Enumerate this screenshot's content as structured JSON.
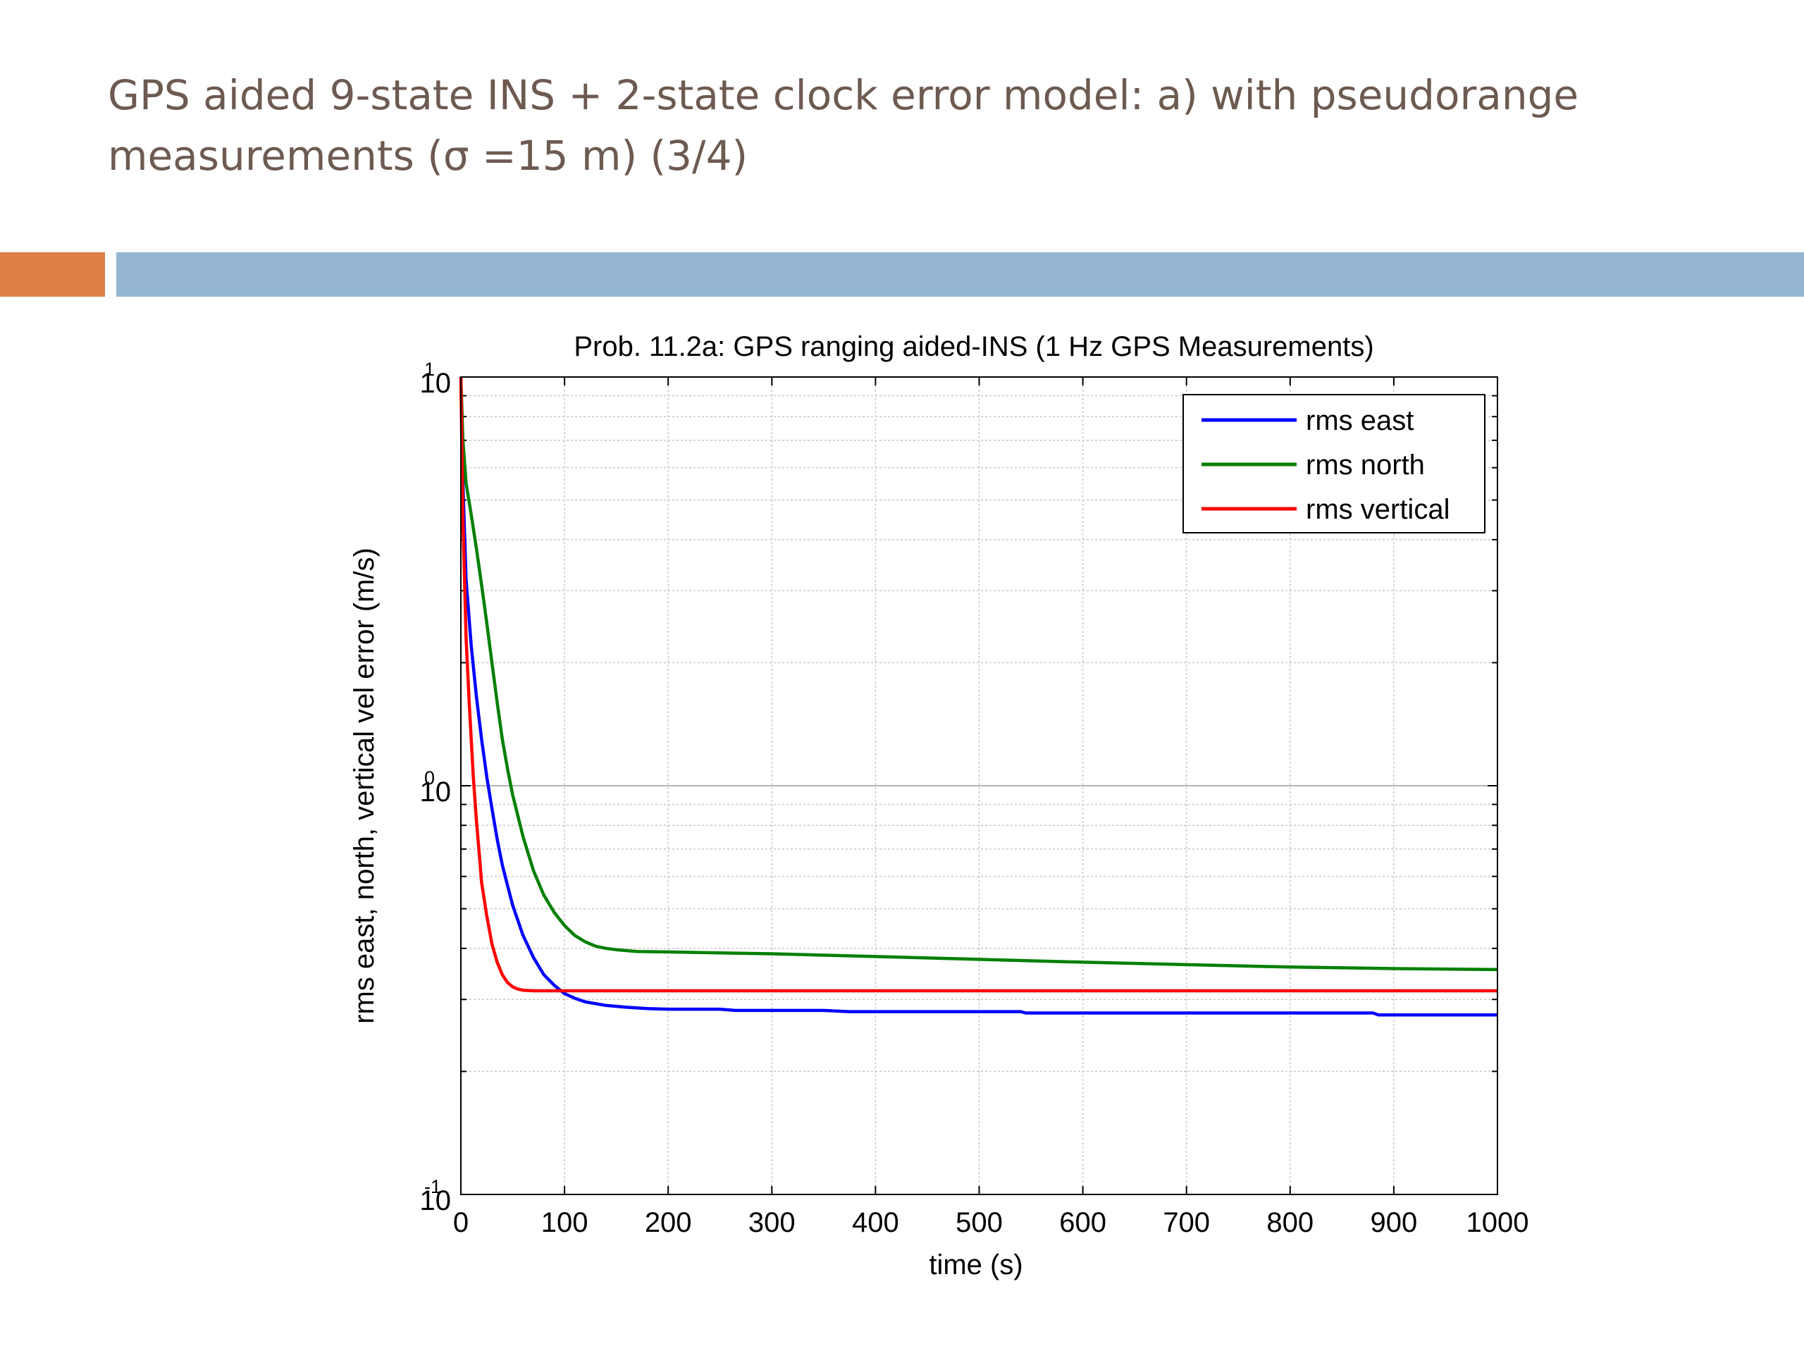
{
  "slide": {
    "title_line1": "GPS aided 9-state INS + 2-state clock error model: a) with pseudorange",
    "title_line2": "measurements (σ =15 m) (3/4)",
    "accent_colors": [
      "#dd8047",
      "#94b6d2"
    ]
  },
  "chart_data": {
    "type": "line",
    "title": "Prob. 11.2a: GPS ranging aided-INS (1 Hz GPS Measurements)",
    "xlabel": "time (s)",
    "ylabel": "rms east, north, vertical vel error (m/s)",
    "xlim": [
      0,
      1000
    ],
    "ylim": [
      0.1,
      10
    ],
    "yscale": "log",
    "xticks": [
      0,
      100,
      200,
      300,
      400,
      500,
      600,
      700,
      800,
      900,
      1000
    ],
    "xtick_labels": [
      "0",
      "100",
      "200",
      "300",
      "400",
      "500",
      "600",
      "700",
      "800",
      "900",
      "1000"
    ],
    "yticks": [
      0.1,
      1,
      10
    ],
    "ytick_labels": [
      {
        "base": "10",
        "exp": "-1"
      },
      {
        "base": "10",
        "exp": "0"
      },
      {
        "base": "10",
        "exp": "1"
      }
    ],
    "grid": true,
    "legend_position": "top-right",
    "series": [
      {
        "name": "rms east",
        "color": "#0000ff",
        "x": [
          0,
          2,
          5,
          10,
          15,
          20,
          25,
          30,
          35,
          40,
          45,
          50,
          60,
          70,
          80,
          90,
          100,
          110,
          120,
          140,
          160,
          180,
          200,
          250,
          265,
          300,
          350,
          375,
          400,
          450,
          500,
          540,
          545,
          600,
          700,
          800,
          880,
          885,
          1000
        ],
        "y": [
          10,
          5.5,
          3.2,
          2.2,
          1.65,
          1.3,
          1.05,
          0.88,
          0.74,
          0.64,
          0.57,
          0.51,
          0.43,
          0.38,
          0.345,
          0.325,
          0.31,
          0.302,
          0.296,
          0.29,
          0.287,
          0.285,
          0.284,
          0.284,
          0.282,
          0.282,
          0.282,
          0.28,
          0.28,
          0.28,
          0.28,
          0.28,
          0.278,
          0.278,
          0.278,
          0.278,
          0.278,
          0.275,
          0.275
        ]
      },
      {
        "name": "rms north",
        "color": "#008000",
        "x": [
          0,
          2,
          5,
          10,
          15,
          20,
          25,
          30,
          35,
          40,
          45,
          50,
          60,
          70,
          80,
          90,
          100,
          110,
          120,
          130,
          140,
          150,
          160,
          170,
          200,
          300,
          400,
          500,
          600,
          700,
          800,
          900,
          1000
        ],
        "y": [
          10,
          7.0,
          5.5,
          4.6,
          3.8,
          3.1,
          2.5,
          2.0,
          1.6,
          1.3,
          1.1,
          0.95,
          0.75,
          0.62,
          0.54,
          0.49,
          0.455,
          0.43,
          0.415,
          0.405,
          0.4,
          0.397,
          0.395,
          0.393,
          0.392,
          0.388,
          0.382,
          0.376,
          0.37,
          0.365,
          0.36,
          0.357,
          0.355
        ]
      },
      {
        "name": "rms vertical",
        "color": "#ff0000",
        "x": [
          0,
          2,
          5,
          8,
          10,
          12,
          15,
          18,
          20,
          25,
          30,
          35,
          40,
          45,
          50,
          55,
          60,
          70,
          80,
          100,
          150,
          300,
          500,
          1000
        ],
        "y": [
          10,
          4.5,
          2.3,
          1.6,
          1.3,
          1.05,
          0.82,
          0.67,
          0.58,
          0.48,
          0.41,
          0.37,
          0.345,
          0.33,
          0.322,
          0.318,
          0.316,
          0.315,
          0.315,
          0.315,
          0.315,
          0.315,
          0.315,
          0.315
        ]
      }
    ]
  }
}
